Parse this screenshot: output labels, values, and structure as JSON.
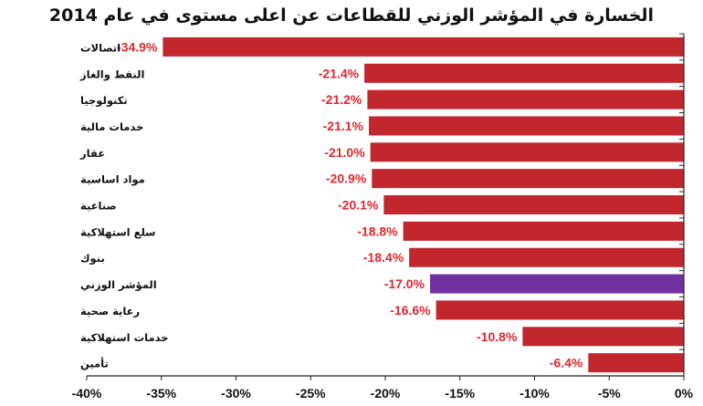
{
  "chart_data": {
    "type": "bar",
    "orientation": "horizontal",
    "title": "الخسارة في المؤشر الوزني للقطاعات عن اعلى مستوى في عام 2014",
    "categories": [
      "اتصالات",
      "النفط والغاز",
      "تكنولوجيا",
      "خدمات مالية",
      "عقار",
      "مواد اساسية",
      "صناعية",
      "سلع استهلاكية",
      "بنوك",
      "المؤشر الوزني",
      "رعاية صحية",
      "خدمات استهلاكية",
      "تأمين"
    ],
    "values": [
      -34.9,
      -21.4,
      -21.2,
      -21.1,
      -21.0,
      -20.9,
      -20.1,
      -18.8,
      -18.4,
      -17.0,
      -16.6,
      -10.8,
      -6.4
    ],
    "value_labels": [
      "-34.9%",
      "-21.4%",
      "-21.2%",
      "-21.1%",
      "-21.0%",
      "-20.9%",
      "-20.1%",
      "-18.8%",
      "-18.4%",
      "-17.0%",
      "-16.6%",
      "-10.8%",
      "-6.4%"
    ],
    "highlight_category": "المؤشر الوزني",
    "xlim": [
      -40,
      0
    ],
    "x_ticks": [
      -40,
      -35,
      -30,
      -25,
      -20,
      -15,
      -10,
      -5,
      0
    ],
    "x_tick_labels": [
      "-40%",
      "-35%",
      "-30%",
      "-25%",
      "-20%",
      "-15%",
      "-10%",
      "-5%",
      "0%"
    ],
    "grid": false,
    "colors": {
      "bar": "#c1272d",
      "highlight": "#7030a0",
      "value_label": "#e3262d"
    }
  }
}
